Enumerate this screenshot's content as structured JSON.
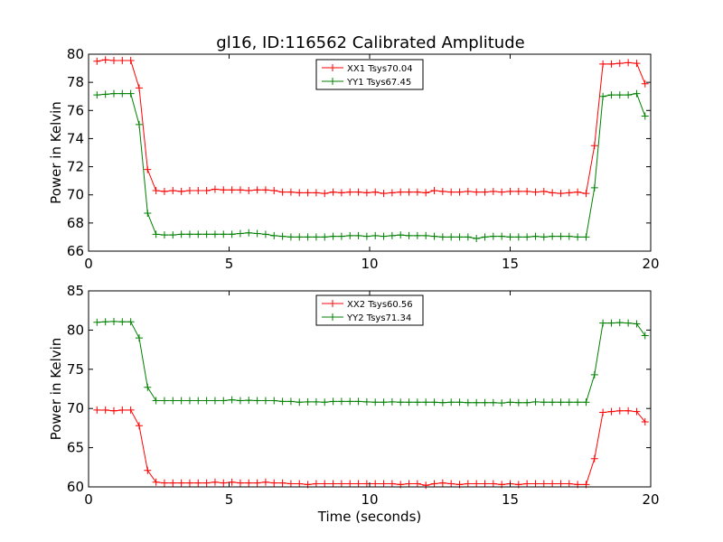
{
  "figure": {
    "title": "gl16, ID:116562 Calibrated Amplitude"
  },
  "chart_data": [
    {
      "type": "line",
      "title": "gl16, ID:116562 Calibrated Amplitude",
      "xlabel": "",
      "ylabel": "Power in Kelvin",
      "xlim": [
        0,
        20
      ],
      "ylim": [
        66,
        80
      ],
      "xticks": [
        0,
        5,
        10,
        15,
        20
      ],
      "yticks": [
        66,
        68,
        70,
        72,
        74,
        76,
        78,
        80
      ],
      "grid": false,
      "legend_position": "top-center",
      "x": [
        0.3,
        0.6,
        0.9,
        1.2,
        1.5,
        1.8,
        2.1,
        2.4,
        2.7,
        3.0,
        3.3,
        3.6,
        3.9,
        4.2,
        4.5,
        4.8,
        5.1,
        5.4,
        5.7,
        6.0,
        6.3,
        6.6,
        6.9,
        7.2,
        7.5,
        7.8,
        8.1,
        8.4,
        8.7,
        9.0,
        9.3,
        9.6,
        9.9,
        10.2,
        10.5,
        10.8,
        11.1,
        11.4,
        11.7,
        12.0,
        12.3,
        12.6,
        12.9,
        13.2,
        13.5,
        13.8,
        14.1,
        14.4,
        14.7,
        15.0,
        15.3,
        15.6,
        15.9,
        16.2,
        16.5,
        16.8,
        17.1,
        17.4,
        17.7,
        18.0,
        18.3,
        18.6,
        18.9,
        19.2,
        19.5,
        19.8
      ],
      "series": [
        {
          "name": "XX1 Tsys70.04",
          "color": "#ff0000",
          "values": [
            79.5,
            79.6,
            79.55,
            79.55,
            79.55,
            77.6,
            71.8,
            70.3,
            70.25,
            70.3,
            70.25,
            70.3,
            70.3,
            70.3,
            70.4,
            70.35,
            70.35,
            70.35,
            70.3,
            70.35,
            70.35,
            70.3,
            70.2,
            70.2,
            70.15,
            70.15,
            70.15,
            70.1,
            70.2,
            70.15,
            70.2,
            70.2,
            70.15,
            70.2,
            70.1,
            70.15,
            70.2,
            70.2,
            70.2,
            70.15,
            70.3,
            70.25,
            70.2,
            70.2,
            70.25,
            70.2,
            70.2,
            70.25,
            70.2,
            70.25,
            70.25,
            70.25,
            70.2,
            70.25,
            70.15,
            70.1,
            70.15,
            70.2,
            70.1,
            73.5,
            79.3,
            79.3,
            79.35,
            79.4,
            79.35,
            77.9
          ]
        },
        {
          "name": "YY1 Tsys67.45",
          "color": "#008000",
          "values": [
            77.1,
            77.15,
            77.2,
            77.2,
            77.2,
            75.0,
            68.7,
            67.2,
            67.15,
            67.15,
            67.2,
            67.2,
            67.2,
            67.2,
            67.2,
            67.2,
            67.2,
            67.25,
            67.3,
            67.25,
            67.2,
            67.1,
            67.05,
            67.0,
            67.0,
            67.0,
            67.0,
            67.0,
            67.05,
            67.05,
            67.1,
            67.1,
            67.05,
            67.1,
            67.05,
            67.1,
            67.15,
            67.1,
            67.1,
            67.1,
            67.05,
            67.0,
            67.0,
            67.0,
            67.0,
            66.9,
            67.0,
            67.05,
            67.05,
            67.0,
            67.0,
            67.0,
            67.05,
            67.0,
            67.05,
            67.05,
            67.05,
            67.0,
            67.0,
            70.5,
            77.0,
            77.1,
            77.1,
            77.1,
            77.2,
            75.6
          ]
        }
      ]
    },
    {
      "type": "line",
      "title": "",
      "xlabel": "Time (seconds)",
      "ylabel": "Power in Kelvin",
      "xlim": [
        0,
        20
      ],
      "ylim": [
        60,
        85
      ],
      "xticks": [
        0,
        5,
        10,
        15,
        20
      ],
      "yticks": [
        60,
        65,
        70,
        75,
        80,
        85
      ],
      "grid": false,
      "legend_position": "top-center",
      "x": [
        0.3,
        0.6,
        0.9,
        1.2,
        1.5,
        1.8,
        2.1,
        2.4,
        2.7,
        3.0,
        3.3,
        3.6,
        3.9,
        4.2,
        4.5,
        4.8,
        5.1,
        5.4,
        5.7,
        6.0,
        6.3,
        6.6,
        6.9,
        7.2,
        7.5,
        7.8,
        8.1,
        8.4,
        8.7,
        9.0,
        9.3,
        9.6,
        9.9,
        10.2,
        10.5,
        10.8,
        11.1,
        11.4,
        11.7,
        12.0,
        12.3,
        12.6,
        12.9,
        13.2,
        13.5,
        13.8,
        14.1,
        14.4,
        14.7,
        15.0,
        15.3,
        15.6,
        15.9,
        16.2,
        16.5,
        16.8,
        17.1,
        17.4,
        17.7,
        18.0,
        18.3,
        18.6,
        18.9,
        19.2,
        19.5,
        19.8
      ],
      "series": [
        {
          "name": "XX2 Tsys60.56",
          "color": "#ff0000",
          "values": [
            69.8,
            69.8,
            69.7,
            69.8,
            69.8,
            67.8,
            62.1,
            60.6,
            60.5,
            60.5,
            60.5,
            60.5,
            60.5,
            60.5,
            60.6,
            60.5,
            60.6,
            60.5,
            60.5,
            60.5,
            60.6,
            60.5,
            60.5,
            60.4,
            60.4,
            60.3,
            60.4,
            60.4,
            60.4,
            60.4,
            60.4,
            60.4,
            60.4,
            60.4,
            60.4,
            60.4,
            60.3,
            60.4,
            60.4,
            60.2,
            60.4,
            60.5,
            60.4,
            60.3,
            60.4,
            60.4,
            60.4,
            60.4,
            60.3,
            60.4,
            60.3,
            60.4,
            60.4,
            60.4,
            60.4,
            60.4,
            60.4,
            60.3,
            60.3,
            63.6,
            69.5,
            69.6,
            69.7,
            69.7,
            69.6,
            68.3
          ]
        },
        {
          "name": "YY2 Tsys71.34",
          "color": "#008000",
          "values": [
            81.0,
            81.05,
            81.1,
            81.05,
            81.05,
            79.0,
            72.7,
            71.0,
            71.0,
            71.0,
            71.0,
            71.0,
            71.0,
            71.0,
            71.0,
            71.0,
            71.1,
            71.0,
            71.05,
            71.0,
            71.0,
            71.0,
            70.9,
            70.9,
            70.8,
            70.85,
            70.85,
            70.8,
            70.9,
            70.9,
            70.9,
            70.9,
            70.85,
            70.8,
            70.8,
            70.85,
            70.8,
            70.8,
            70.8,
            70.8,
            70.8,
            70.75,
            70.8,
            70.8,
            70.75,
            70.75,
            70.75,
            70.75,
            70.7,
            70.8,
            70.75,
            70.75,
            70.85,
            70.8,
            70.8,
            70.8,
            70.8,
            70.8,
            70.8,
            74.3,
            80.9,
            80.9,
            80.95,
            80.9,
            80.8,
            79.3
          ]
        }
      ]
    }
  ]
}
